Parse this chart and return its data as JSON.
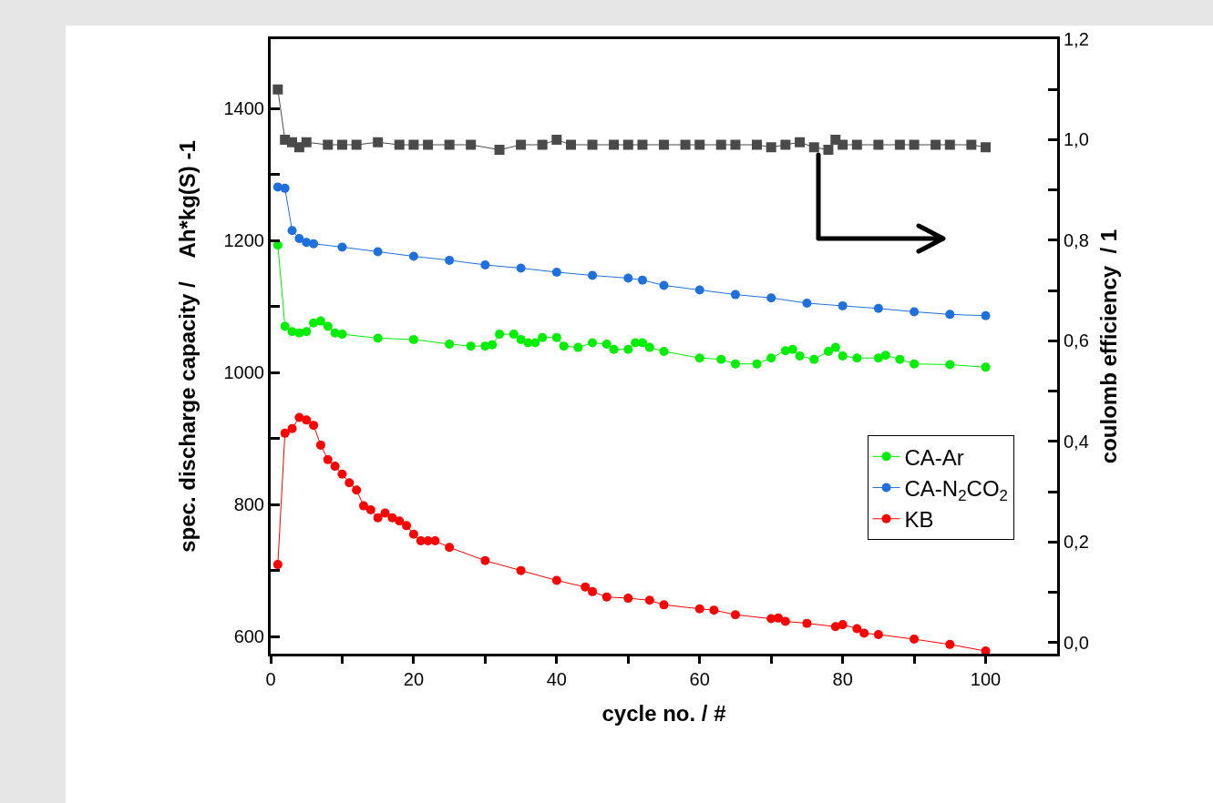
{
  "chart_data": {
    "type": "line",
    "xlabel": "cycle no. / #",
    "ylabel": "spec. discharge capacity /    Ah*kg(S) -1",
    "y2label": "coulomb efficiency  / 1",
    "xlim": [
      0,
      110
    ],
    "xticks": [
      0,
      {
        "value": 10,
        "label": null
      },
      20,
      {
        "value": 30,
        "label": null
      },
      40,
      {
        "value": 50,
        "label": null
      },
      60,
      {
        "value": 70,
        "label": null
      },
      80,
      {
        "value": 90,
        "label": null
      },
      100
    ],
    "ylim": [
      574,
      1505
    ],
    "yticks": [
      600,
      {
        "value": 700,
        "label": null
      },
      800,
      {
        "value": 900,
        "label": null
      },
      1000,
      {
        "value": 1100,
        "label": null
      },
      1200,
      {
        "value": 1300,
        "label": null
      },
      1400
    ],
    "y2lim": [
      -0.022,
      1.2
    ],
    "y2ticks": [
      {
        "value": 0,
        "label": "0,0"
      },
      {
        "value": 0.1,
        "label": null
      },
      {
        "value": 0.2,
        "label": "0,2"
      },
      {
        "value": 0.3,
        "label": null
      },
      {
        "value": 0.4,
        "label": "0,4"
      },
      {
        "value": 0.5,
        "label": null
      },
      {
        "value": 0.6,
        "label": "0,6"
      },
      {
        "value": 0.7,
        "label": null
      },
      {
        "value": 0.8,
        "label": "0,8"
      },
      {
        "value": 0.9,
        "label": null
      },
      {
        "value": 1.0,
        "label": "1,0"
      },
      {
        "value": 1.1,
        "label": null
      },
      {
        "value": 1.2,
        "label": "1,2"
      }
    ],
    "grid": false,
    "legend": "right",
    "line_style": "solid",
    "series": [
      {
        "name": "CA-Ar",
        "color": "#00ee00",
        "marker": "circle",
        "x": [
          1,
          2,
          3,
          4,
          5,
          6,
          7,
          8,
          9,
          10,
          15,
          20,
          25,
          28,
          30,
          31,
          32,
          34,
          35,
          36,
          37,
          38,
          40,
          41,
          43,
          45,
          47,
          48,
          50,
          51,
          52,
          53,
          55,
          60,
          63,
          65,
          68,
          70,
          72,
          73,
          74,
          76,
          78,
          79,
          80,
          82,
          85,
          86,
          88,
          90,
          95,
          100
        ],
        "values": [
          1193,
          1070,
          1062,
          1060,
          1062,
          1075,
          1078,
          1070,
          1060,
          1058,
          1052,
          1050,
          1043,
          1040,
          1040,
          1042,
          1058,
          1058,
          1050,
          1045,
          1045,
          1053,
          1053,
          1040,
          1038,
          1045,
          1043,
          1035,
          1035,
          1045,
          1045,
          1038,
          1032,
          1022,
          1020,
          1013,
          1013,
          1022,
          1033,
          1035,
          1025,
          1020,
          1032,
          1038,
          1025,
          1022,
          1022,
          1026,
          1020,
          1013,
          1012,
          1008
        ]
      },
      {
        "name": "CA-N$_{2}$CO$_{2}$",
        "color": "#1f6fdc",
        "marker": "circle",
        "x": [
          1,
          2,
          3,
          4,
          5,
          6,
          10,
          15,
          20,
          25,
          30,
          35,
          40,
          45,
          50,
          52,
          55,
          60,
          65,
          70,
          75,
          80,
          85,
          90,
          95,
          100
        ],
        "values": [
          1281,
          1279,
          1215,
          1203,
          1197,
          1195,
          1190,
          1183,
          1176,
          1170,
          1163,
          1158,
          1152,
          1147,
          1143,
          1140,
          1132,
          1125,
          1118,
          1113,
          1105,
          1101,
          1097,
          1092,
          1088,
          1086
        ]
      },
      {
        "name": "KB",
        "color": "#ff0000",
        "marker": "circle",
        "x": [
          1,
          2,
          3,
          4,
          5,
          6,
          7,
          8,
          9,
          10,
          11,
          12,
          13,
          14,
          15,
          16,
          17,
          18,
          19,
          20,
          21,
          22,
          23,
          25,
          30,
          35,
          40,
          44,
          45,
          47,
          50,
          53,
          55,
          60,
          62,
          65,
          70,
          71,
          72,
          75,
          79,
          80,
          82,
          83,
          85,
          90,
          95,
          100
        ],
        "values": [
          709,
          908,
          915,
          932,
          928,
          920,
          890,
          868,
          858,
          846,
          833,
          822,
          798,
          792,
          780,
          787,
          780,
          775,
          768,
          755,
          745,
          745,
          745,
          735,
          715,
          700,
          685,
          675,
          668,
          660,
          658,
          655,
          648,
          642,
          640,
          633,
          627,
          628,
          623,
          620,
          615,
          618,
          612,
          605,
          603,
          596,
          588,
          578
        ]
      },
      {
        "color": "#4a4a4a",
        "marker": "square",
        "axis": "y2",
        "x": [
          1,
          2,
          3,
          4,
          5,
          8,
          10,
          12,
          15,
          18,
          20,
          22,
          25,
          28,
          32,
          35,
          38,
          40,
          42,
          45,
          48,
          50,
          52,
          55,
          58,
          60,
          63,
          65,
          68,
          70,
          72,
          74,
          76,
          78,
          79,
          80,
          82,
          85,
          88,
          90,
          93,
          95,
          98,
          100
        ],
        "values": [
          1.1,
          1.0,
          0.995,
          0.985,
          0.995,
          0.99,
          0.99,
          0.99,
          0.995,
          0.99,
          0.99,
          0.99,
          0.99,
          0.99,
          0.98,
          0.99,
          0.99,
          1.0,
          0.99,
          0.99,
          0.99,
          0.99,
          0.99,
          0.99,
          0.99,
          0.99,
          0.99,
          0.99,
          0.99,
          0.985,
          0.99,
          0.995,
          0.985,
          0.98,
          1.0,
          0.99,
          0.99,
          0.99,
          0.99,
          0.99,
          0.99,
          0.99,
          0.99,
          0.985
        ]
      }
    ]
  }
}
